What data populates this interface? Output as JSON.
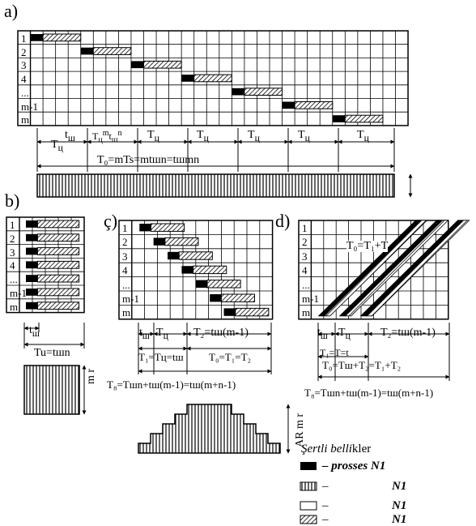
{
  "panels": {
    "a": "a)",
    "b": "b)",
    "c": "ç)",
    "d": "d)"
  },
  "row_labels": [
    "1",
    "2",
    "3",
    "4",
    "...",
    "m-1",
    "m"
  ],
  "panel_a": {
    "row_labels": [
      "1",
      "2",
      "3",
      "4",
      "...",
      "m-1",
      "m"
    ],
    "lbl_tsh1": "T",
    "lbl_tsh1_sub": "ц",
    "lbl_tsh_small": "t",
    "lbl_tsh_small_sub": "ш",
    "lbl_mix": "T",
    "lbl_mix_sub": "ц",
    "lbl_mix_m": "m",
    "lbl_mix_t": "t",
    "lbl_mix_tsub": "ш",
    "lbl_mix_n": "n",
    "seg_labels": [
      "T",
      "T",
      "T",
      "T",
      "T"
    ],
    "seg_sub": "ц",
    "last_sub": "ш",
    "total": "T₀=mTs=mtшn=tшmn"
  },
  "panel_b": {
    "row_labels": [
      "1",
      "2",
      "3",
      "4",
      "...",
      "m-1",
      "m"
    ],
    "tsh": "t",
    "tsh_sub": "ш",
    "total": "Tu=tшn",
    "side": "m r"
  },
  "panel_c": {
    "row_labels": [
      "1",
      "2",
      "3",
      "4",
      "...",
      "m-1",
      "m"
    ],
    "ann_t": "t",
    "ann_t_sub": "ш",
    "ann_T": "T",
    "ann_T_sub": "ц",
    "ann_T2": "T₂=tш(m-1)",
    "ann_T1": "T₁=Tц=tш",
    "ann_T0": "T₀=T₁=T₂",
    "formula": "T₈=Tшn+tш(m-1)=tш(m+n-1)",
    "side": "AR m r"
  },
  "panel_d": {
    "row_labels": [
      "1",
      "2",
      "3",
      "4",
      "...",
      "m-1",
      "m"
    ],
    "top": "T₀=T₁+T",
    "ann_t": "t",
    "ann_t_sub": "ш",
    "ann_T": "T",
    "ann_T_sub": "ц",
    "ann_T2": "T₂=tш(m-1)",
    "ann_T1": "T₁=T=t",
    "ann_T0": "T₀=Tш+T₂=T₁+T₂",
    "formula": "T₈=Tшn+tш(m-1)=tш(m+n-1)"
  },
  "legend": {
    "title_pre": "Şertli ",
    "title_it": "belli",
    "title_post": "kler",
    "items": [
      {
        "pattern": "solid",
        "label": "– prosses N1"
      },
      {
        "pattern": "vertical",
        "label": "–",
        "suffix": "N1"
      },
      {
        "pattern": "empty",
        "label": "–",
        "suffix": "N1"
      },
      {
        "pattern": "diagonal",
        "label": "–",
        "suffix": "N1"
      }
    ]
  },
  "colors": {
    "ink": "#000000",
    "paper": "#ffffff"
  }
}
